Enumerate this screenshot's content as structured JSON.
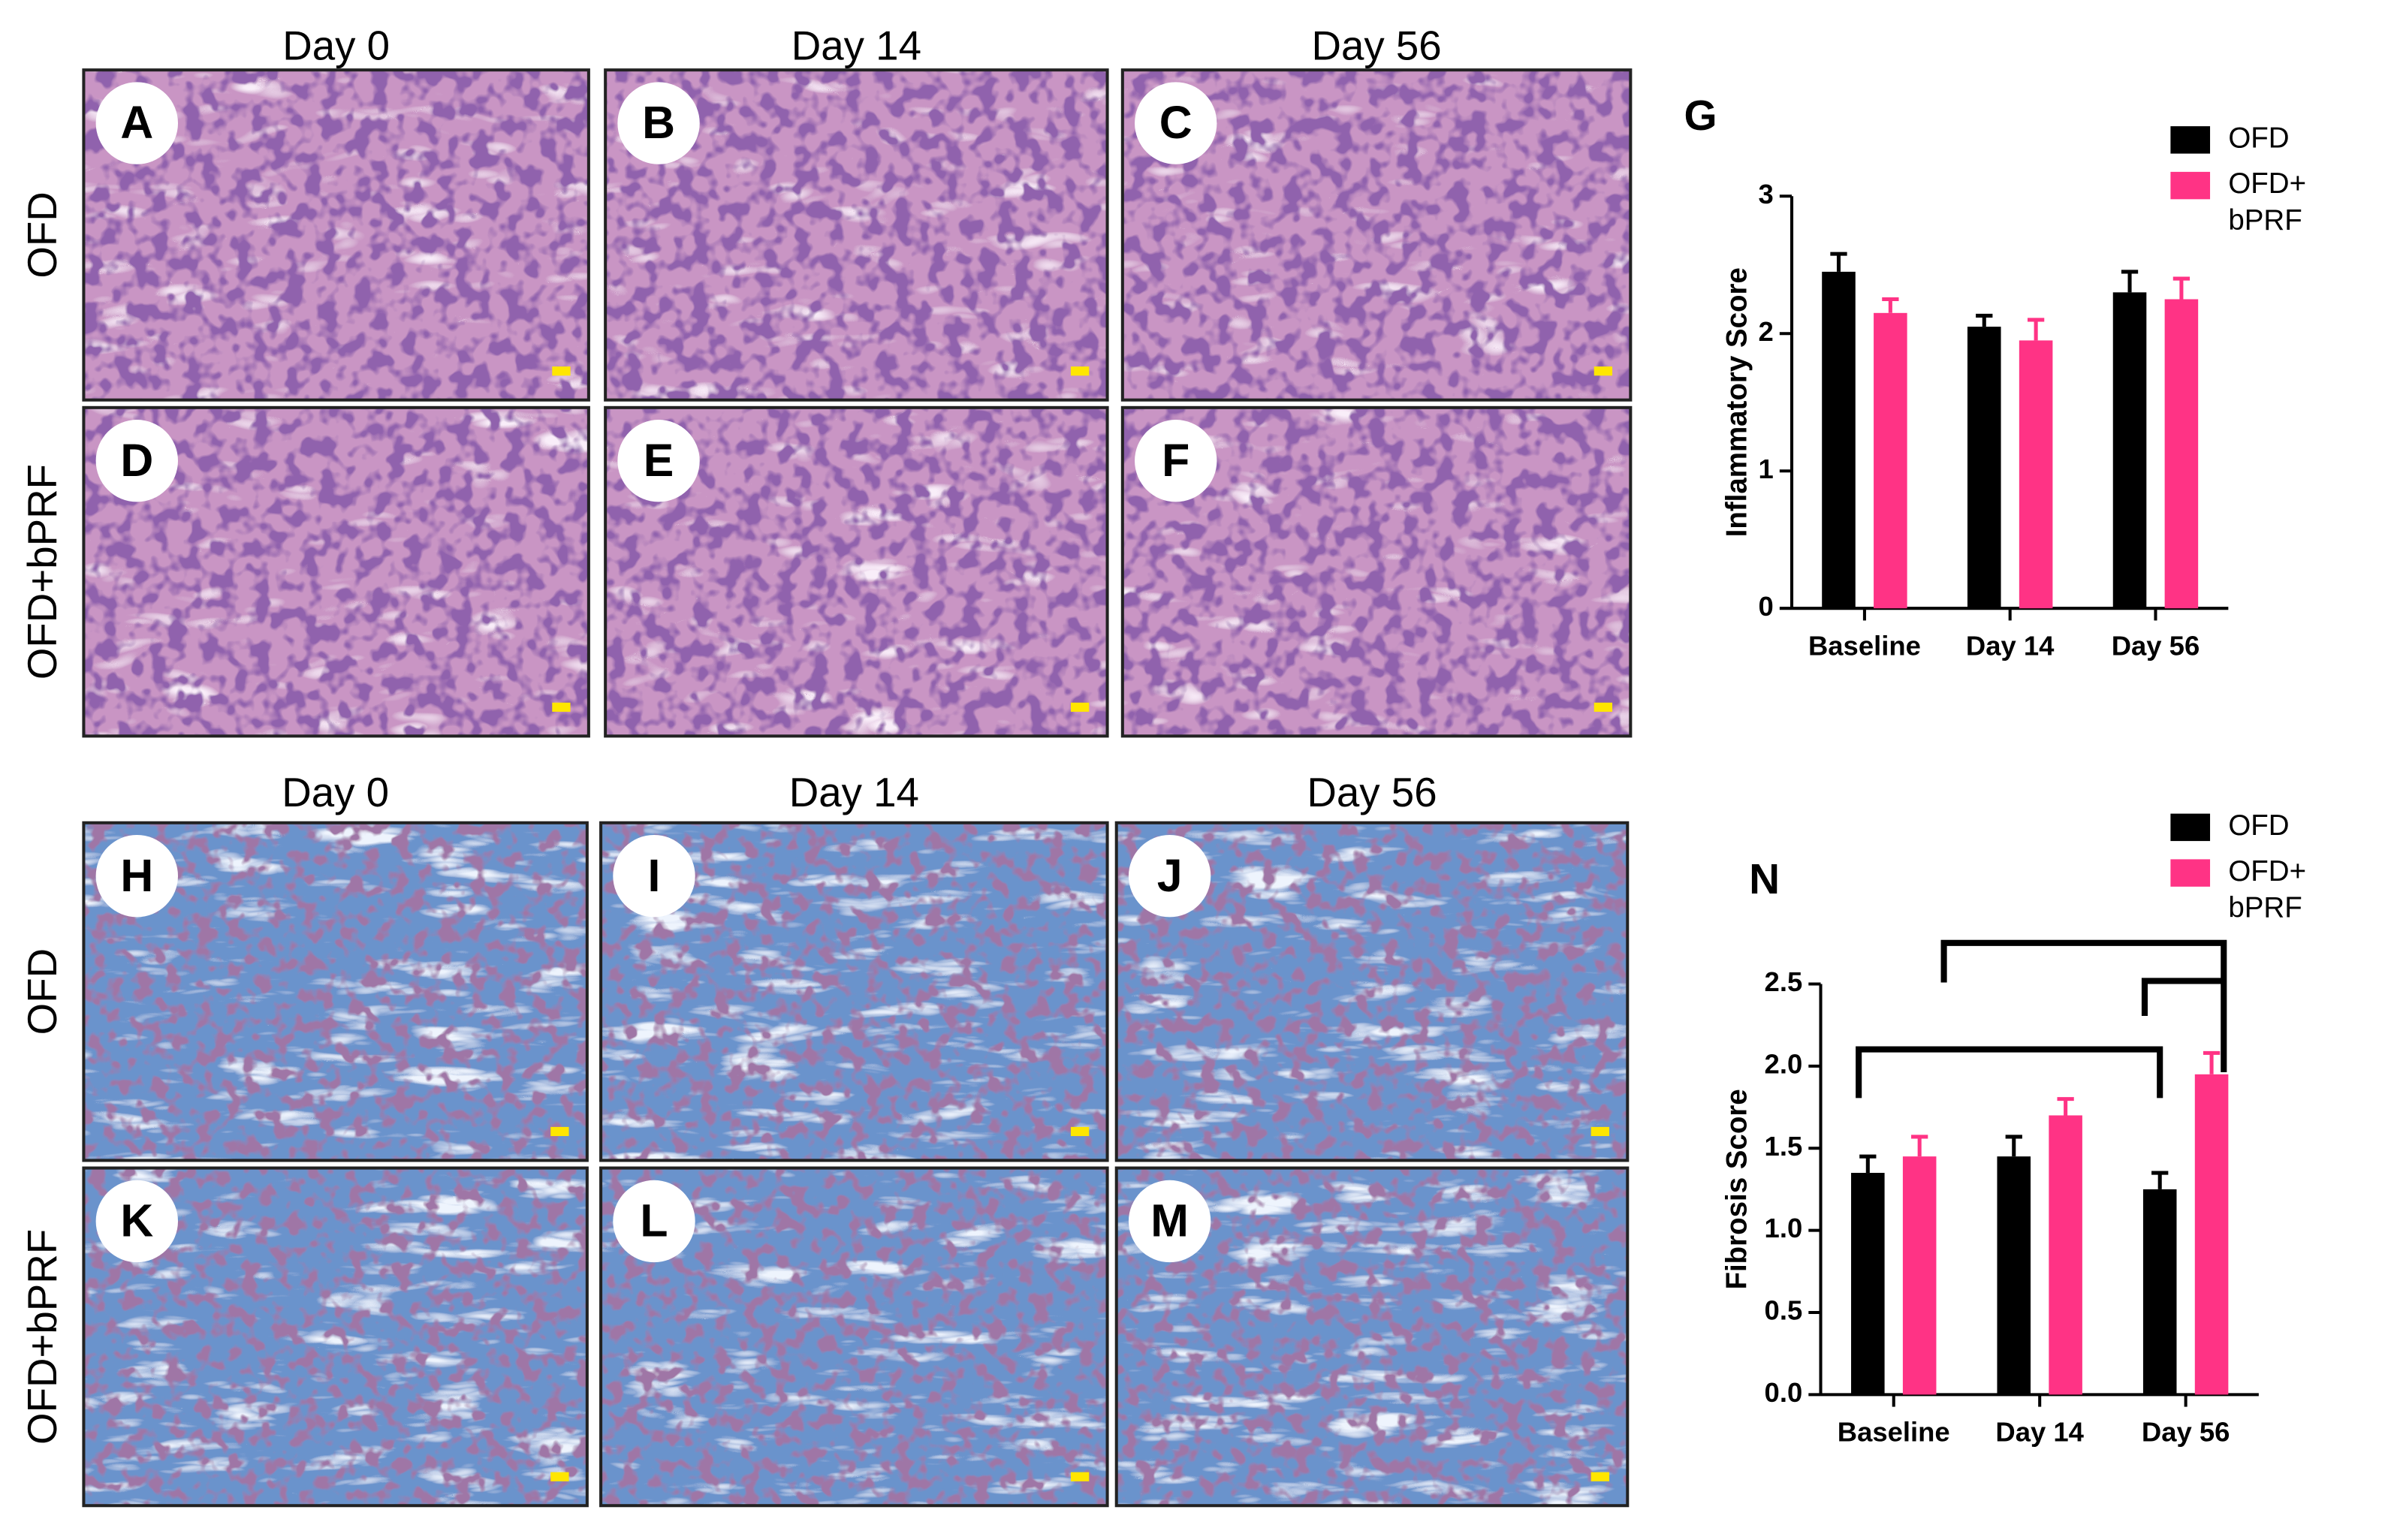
{
  "histology": [
    {
      "columns": [
        "Day 0",
        "Day 14",
        "Day 56"
      ],
      "rows": [
        "OFD",
        "OFD+bPRF"
      ],
      "panels": [
        "A",
        "B",
        "C",
        "D",
        "E",
        "F"
      ]
    },
    {
      "columns": [
        "Day 0",
        "Day 14",
        "Day 56"
      ],
      "rows": [
        "OFD",
        "OFD+bPRF"
      ],
      "panels": [
        "H",
        "I",
        "J",
        "K",
        "L",
        "M"
      ]
    }
  ],
  "chart_data": [
    {
      "type": "bar",
      "title": "G",
      "ylabel": "Inflammatory Score",
      "categories": [
        "Baseline",
        "Day 14",
        "Day 56"
      ],
      "series": [
        {
          "name": "OFD",
          "color": "#000000",
          "values": [
            2.45,
            2.05,
            2.3
          ],
          "errors": [
            0.13,
            0.08,
            0.15
          ]
        },
        {
          "name": "OFD+ bPRF",
          "color": "#ff3385",
          "values": [
            2.15,
            1.95,
            2.25
          ],
          "errors": [
            0.1,
            0.15,
            0.15
          ]
        }
      ],
      "ylim": [
        0,
        3
      ],
      "yticks": [
        0,
        1,
        2,
        3
      ],
      "legend": "upper right"
    },
    {
      "type": "bar",
      "title": "N",
      "ylabel": "Fibrosis Score",
      "categories": [
        "Baseline",
        "Day 14",
        "Day 56"
      ],
      "series": [
        {
          "name": "OFD",
          "color": "#000000",
          "values": [
            1.35,
            1.45,
            1.25
          ],
          "errors": [
            0.1,
            0.12,
            0.1
          ]
        },
        {
          "name": "OFD+ bPRF",
          "color": "#ff3385",
          "values": [
            1.45,
            1.7,
            1.95
          ],
          "errors": [
            0.12,
            0.1,
            0.13
          ]
        }
      ],
      "ylim": [
        0,
        2.5
      ],
      "yticks": [
        {
          "value": 0,
          "label": "0.0"
        },
        0.5,
        {
          "value": 1,
          "label": "1.0"
        },
        1.5,
        {
          "value": 2,
          "label": "2.0"
        },
        2.5
      ],
      "legend": "upper right"
    }
  ]
}
